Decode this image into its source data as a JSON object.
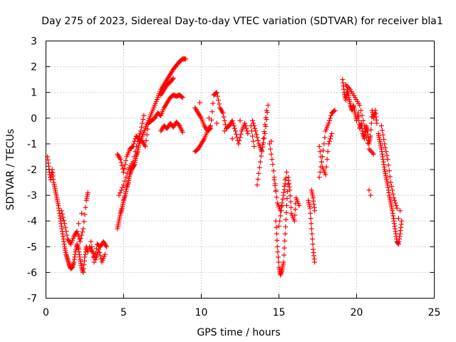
{
  "chart_data": {
    "type": "scatter",
    "title": "Day 275 of 2023, Sidereal Day-to-day VTEC variation (SDTVAR) for receiver bla1",
    "xlabel": "GPS time / hours",
    "ylabel": "SDTVAR / TECUs",
    "xlim": [
      0,
      25
    ],
    "ylim": [
      -7,
      3
    ],
    "xticks": [
      "0",
      "5",
      "10",
      "15",
      "20",
      "25"
    ],
    "yticks": [
      "3",
      "2",
      "1",
      "0",
      "-1",
      "-2",
      "-3",
      "-4",
      "-5",
      "-6",
      "-7"
    ],
    "grid": true,
    "marker": "+",
    "color": "#ff0000",
    "series": [
      {
        "name": "SDTVAR",
        "points": [
          [
            0.1,
            -1.5
          ],
          [
            0.2,
            -2.0
          ],
          [
            0.3,
            -2.4
          ],
          [
            0.4,
            -2.0
          ],
          [
            0.5,
            -2.5
          ],
          [
            0.6,
            -2.8
          ],
          [
            0.7,
            -3.1
          ],
          [
            0.8,
            -3.4
          ],
          [
            0.9,
            -3.8
          ],
          [
            1.0,
            -4.2
          ],
          [
            1.1,
            -4.6
          ],
          [
            1.2,
            -5.0
          ],
          [
            1.3,
            -5.3
          ],
          [
            1.4,
            -5.5
          ],
          [
            1.5,
            -5.7
          ],
          [
            1.6,
            -5.85
          ],
          [
            1.7,
            -5.8
          ],
          [
            1.8,
            -5.6
          ],
          [
            1.9,
            -5.2
          ],
          [
            2.0,
            -4.9
          ],
          [
            2.1,
            -5.1
          ],
          [
            2.2,
            -5.5
          ],
          [
            2.3,
            -5.8
          ],
          [
            2.4,
            -6.0
          ],
          [
            2.5,
            -5.4
          ],
          [
            2.6,
            -5.0
          ],
          [
            2.7,
            -5.2
          ],
          [
            1.0,
            -3.6
          ],
          [
            1.2,
            -4.1
          ],
          [
            1.4,
            -4.7
          ],
          [
            1.6,
            -4.9
          ],
          [
            1.8,
            -4.6
          ],
          [
            2.0,
            -4.4
          ],
          [
            2.2,
            -4.8
          ],
          [
            2.4,
            -4.3
          ],
          [
            2.6,
            -3.2
          ],
          [
            2.7,
            -2.9
          ],
          [
            2.3,
            -3.7
          ],
          [
            2.1,
            -4.1
          ],
          [
            2.8,
            -5.0
          ],
          [
            3.0,
            -5.2
          ],
          [
            3.2,
            -5.5
          ],
          [
            3.4,
            -5.1
          ],
          [
            3.6,
            -5.6
          ],
          [
            3.8,
            -5.3
          ],
          [
            2.9,
            -4.8
          ],
          [
            3.1,
            -5.6
          ],
          [
            3.3,
            -4.9
          ],
          [
            3.5,
            -5.0
          ],
          [
            3.7,
            -4.8
          ],
          [
            3.9,
            -5.0
          ],
          [
            4.6,
            -4.3
          ],
          [
            4.7,
            -4.0
          ],
          [
            4.8,
            -3.7
          ],
          [
            4.9,
            -3.5
          ],
          [
            5.0,
            -3.2
          ],
          [
            5.1,
            -3.0
          ],
          [
            5.2,
            -2.7
          ],
          [
            5.3,
            -2.5
          ],
          [
            5.4,
            -2.2
          ],
          [
            5.5,
            -2.0
          ],
          [
            5.6,
            -1.9
          ],
          [
            5.7,
            -1.8
          ],
          [
            5.8,
            -1.5
          ],
          [
            5.9,
            -1.3
          ],
          [
            6.0,
            -1.0
          ],
          [
            6.2,
            -0.7
          ],
          [
            6.4,
            -0.4
          ],
          [
            6.6,
            -0.1
          ],
          [
            6.8,
            0.2
          ],
          [
            7.0,
            0.5
          ],
          [
            7.2,
            0.8
          ],
          [
            7.4,
            1.1
          ],
          [
            7.6,
            1.3
          ],
          [
            7.8,
            1.5
          ],
          [
            8.0,
            1.7
          ],
          [
            8.2,
            1.9
          ],
          [
            8.4,
            2.05
          ],
          [
            8.6,
            2.2
          ],
          [
            8.8,
            2.3
          ],
          [
            9.0,
            2.3
          ],
          [
            4.6,
            -1.4
          ],
          [
            4.8,
            -1.6
          ],
          [
            5.0,
            -2.1
          ],
          [
            5.2,
            -1.5
          ],
          [
            5.4,
            -1.2
          ],
          [
            5.6,
            -1.1
          ],
          [
            5.8,
            -0.7
          ],
          [
            6.0,
            -0.8
          ],
          [
            6.2,
            -0.9
          ],
          [
            6.4,
            -1.1
          ],
          [
            6.6,
            -0.2
          ],
          [
            6.8,
            -0.1
          ],
          [
            7.0,
            0.0
          ],
          [
            7.2,
            0.2
          ],
          [
            7.4,
            0.1
          ],
          [
            7.6,
            0.4
          ],
          [
            7.8,
            0.6
          ],
          [
            8.0,
            0.8
          ],
          [
            8.2,
            0.9
          ],
          [
            8.4,
            0.85
          ],
          [
            8.6,
            0.9
          ],
          [
            8.8,
            0.8
          ],
          [
            7.4,
            0.9
          ],
          [
            7.6,
            1.1
          ],
          [
            7.8,
            1.3
          ],
          [
            8.0,
            1.4
          ],
          [
            8.2,
            1.55
          ],
          [
            7.4,
            -0.5
          ],
          [
            7.6,
            -0.3
          ],
          [
            7.8,
            -0.4
          ],
          [
            8.0,
            -0.2
          ],
          [
            8.2,
            -0.35
          ],
          [
            8.4,
            -0.15
          ],
          [
            8.6,
            -0.3
          ],
          [
            8.8,
            -0.55
          ],
          [
            4.7,
            -3.0
          ],
          [
            5.0,
            -2.6
          ],
          [
            5.3,
            -2.0
          ],
          [
            5.6,
            -1.7
          ],
          [
            5.9,
            -0.9
          ],
          [
            6.1,
            -0.5
          ],
          [
            6.3,
            0.1
          ],
          [
            9.6,
            -1.3
          ],
          [
            9.8,
            -1.2
          ],
          [
            10.0,
            -1.0
          ],
          [
            10.2,
            -0.8
          ],
          [
            10.4,
            -0.5
          ],
          [
            10.6,
            -0.3
          ],
          [
            9.6,
            0.4
          ],
          [
            9.8,
            0.2
          ],
          [
            10.0,
            0.0
          ],
          [
            10.2,
            -0.3
          ],
          [
            10.4,
            -0.5
          ],
          [
            10.6,
            -0.4
          ],
          [
            10.8,
            0.9
          ],
          [
            11.0,
            1.0
          ],
          [
            11.2,
            0.4
          ],
          [
            11.4,
            0.2
          ],
          [
            11.6,
            -0.4
          ],
          [
            11.8,
            -0.3
          ],
          [
            12.0,
            -0.1
          ],
          [
            12.2,
            -0.5
          ],
          [
            12.4,
            -1.0
          ],
          [
            12.6,
            -0.5
          ],
          [
            12.8,
            -0.2
          ],
          [
            13.0,
            -0.6
          ],
          [
            9.9,
            0.6
          ],
          [
            10.5,
            0.0
          ],
          [
            11.0,
            -0.2
          ],
          [
            11.5,
            -0.5
          ],
          [
            12.0,
            -0.8
          ],
          [
            12.5,
            -0.1
          ],
          [
            13.2,
            -0.3
          ],
          [
            13.4,
            -1.1
          ],
          [
            13.6,
            -2.6
          ],
          [
            13.8,
            -1.7
          ],
          [
            14.0,
            -0.8
          ],
          [
            14.2,
            0.3
          ],
          [
            13.3,
            -0.1
          ],
          [
            13.5,
            -0.5
          ],
          [
            13.7,
            -1.0
          ],
          [
            13.9,
            -1.3
          ],
          [
            14.1,
            -0.6
          ],
          [
            14.3,
            0.5
          ],
          [
            14.4,
            -1.0
          ],
          [
            14.6,
            -1.8
          ],
          [
            14.8,
            -2.8
          ],
          [
            15.0,
            -4.2
          ],
          [
            15.2,
            -3.4
          ],
          [
            15.4,
            -2.4
          ],
          [
            14.5,
            -0.9
          ],
          [
            14.7,
            -2.4
          ],
          [
            14.9,
            -3.3
          ],
          [
            15.1,
            -3.6
          ],
          [
            15.3,
            -3.0
          ],
          [
            15.5,
            -2.1
          ],
          [
            14.8,
            -4.0
          ],
          [
            14.9,
            -5.0
          ],
          [
            15.0,
            -5.8
          ],
          [
            15.1,
            -6.1
          ],
          [
            15.2,
            -5.9
          ],
          [
            15.3,
            -5.6
          ],
          [
            15.4,
            -4.5
          ],
          [
            15.5,
            -3.4
          ],
          [
            15.6,
            -2.3
          ],
          [
            15.7,
            -2.8
          ],
          [
            15.8,
            -3.7
          ],
          [
            16.0,
            -4.0
          ],
          [
            16.1,
            -3.1
          ],
          [
            16.3,
            -3.4
          ],
          [
            16.9,
            -3.2
          ],
          [
            17.0,
            -3.5
          ],
          [
            17.1,
            -4.3
          ],
          [
            17.2,
            -5.1
          ],
          [
            17.3,
            -5.6
          ],
          [
            17.1,
            -2.8
          ],
          [
            17.2,
            -3.1
          ],
          [
            17.3,
            -3.6
          ],
          [
            17.6,
            -2.3
          ],
          [
            17.8,
            -1.5
          ],
          [
            18.0,
            -0.5
          ],
          [
            18.2,
            -0.2
          ],
          [
            18.4,
            0.2
          ],
          [
            18.6,
            0.3
          ],
          [
            17.6,
            -1.1
          ],
          [
            17.8,
            -1.9
          ],
          [
            18.0,
            -2.2
          ],
          [
            18.2,
            -1.0
          ],
          [
            18.4,
            -0.6
          ],
          [
            19.1,
            1.5
          ],
          [
            19.2,
            1.0
          ],
          [
            19.3,
            0.7
          ],
          [
            19.4,
            1.1
          ],
          [
            19.5,
            0.8
          ],
          [
            19.6,
            0.5
          ],
          [
            19.7,
            0.3
          ],
          [
            19.8,
            0.5
          ],
          [
            19.9,
            0.2
          ],
          [
            20.0,
            -0.1
          ],
          [
            20.1,
            0.2
          ],
          [
            20.2,
            -0.4
          ],
          [
            20.3,
            -0.2
          ],
          [
            20.4,
            -0.6
          ],
          [
            20.5,
            -0.8
          ],
          [
            20.6,
            -0.3
          ],
          [
            20.7,
            -0.5
          ],
          [
            20.8,
            -1.0
          ],
          [
            20.9,
            -0.7
          ],
          [
            21.0,
            0.3
          ],
          [
            21.1,
            0.0
          ],
          [
            21.2,
            0.3
          ],
          [
            21.3,
            -0.2
          ],
          [
            19.3,
            1.3
          ],
          [
            19.6,
            1.1
          ],
          [
            19.9,
            0.8
          ],
          [
            20.2,
            0.5
          ],
          [
            20.5,
            -0.3
          ],
          [
            20.8,
            -1.2
          ],
          [
            21.1,
            -1.4
          ],
          [
            20.9,
            -3.0
          ],
          [
            20.8,
            -2.8
          ],
          [
            21.4,
            -0.6
          ],
          [
            21.5,
            -0.9
          ],
          [
            21.6,
            -1.2
          ],
          [
            21.7,
            -1.6
          ],
          [
            21.8,
            -2.0
          ],
          [
            21.9,
            -2.3
          ],
          [
            22.0,
            -2.6
          ],
          [
            22.1,
            -3.0
          ],
          [
            22.2,
            -3.3
          ],
          [
            22.3,
            -3.6
          ],
          [
            22.4,
            -4.0
          ],
          [
            22.5,
            -4.4
          ],
          [
            22.6,
            -4.8
          ],
          [
            22.7,
            -4.9
          ],
          [
            22.8,
            -4.5
          ],
          [
            22.9,
            -4.0
          ],
          [
            22.8,
            -3.6
          ],
          [
            22.7,
            -3.9
          ],
          [
            21.6,
            -0.3
          ],
          [
            21.8,
            -1.0
          ],
          [
            22.0,
            -1.6
          ],
          [
            22.2,
            -2.5
          ],
          [
            22.4,
            -3.1
          ],
          [
            22.6,
            -3.5
          ]
        ]
      }
    ]
  }
}
